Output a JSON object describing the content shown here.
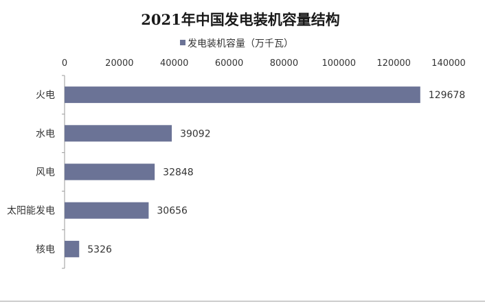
{
  "chart_data": {
    "type": "bar",
    "orientation": "horizontal",
    "title": "2021年中国发电装机容量结构",
    "categories": [
      "火电",
      "水电",
      "风电",
      "太阳能发电",
      "核电"
    ],
    "series": [
      {
        "name": "发电装机容量（万千瓦）",
        "values": [
          129678,
          39092,
          32848,
          30656,
          5326
        ]
      }
    ],
    "xlim": [
      0,
      140000
    ],
    "xticks": [
      "0",
      "20000",
      "40000",
      "60000",
      "80000",
      "100000",
      "120000",
      "140000"
    ],
    "xaxis_position": "top",
    "legend_position": "top",
    "grid": false,
    "data_labels": true,
    "bar_color": "#6b7396"
  }
}
